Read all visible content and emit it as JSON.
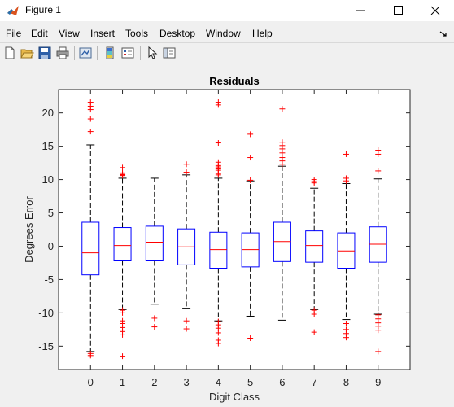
{
  "window": {
    "title": "Figure 1"
  },
  "menu": [
    "File",
    "Edit",
    "View",
    "Insert",
    "Tools",
    "Desktop",
    "Window",
    "Help"
  ],
  "toolbar": [
    "new-figure",
    "open-file",
    "save",
    "print",
    "link-plot",
    "insert-colorbar",
    "insert-legend",
    "edit-plot",
    "open-property-inspector"
  ],
  "colors": {
    "box": "#0000ff",
    "median": "#ff0000",
    "outlier": "#ff0000",
    "whisker": "#000000"
  },
  "chart_data": {
    "type": "boxplot",
    "title": "Residuals",
    "xlabel": "Digit Class",
    "ylabel": "Degrees Error",
    "categories": [
      "0",
      "1",
      "2",
      "3",
      "4",
      "5",
      "6",
      "7",
      "8",
      "9"
    ],
    "yticks": [
      -15,
      -10,
      -5,
      0,
      5,
      10,
      15,
      20
    ],
    "ylim": [
      -18.5,
      23.5
    ],
    "grid": false,
    "boxes": [
      {
        "category": "0",
        "q1": -4.3,
        "median": -1.0,
        "q3": 3.6,
        "whisker_low": -15.8,
        "whisker_high": 15.2,
        "outliers": [
          21.6,
          21.0,
          20.5,
          19.1,
          17.2,
          -16.1,
          -16.4
        ]
      },
      {
        "category": "1",
        "q1": -2.2,
        "median": 0.1,
        "q3": 2.8,
        "whisker_low": -9.5,
        "whisker_high": 10.2,
        "outliers": [
          11.8,
          11.0,
          10.8,
          10.7,
          10.6,
          -9.6,
          -10.0,
          -11.2,
          -11.6,
          -12.2,
          -12.8,
          -13.3,
          -16.5
        ]
      },
      {
        "category": "2",
        "q1": -2.2,
        "median": 0.6,
        "q3": 3.0,
        "whisker_low": -8.7,
        "whisker_high": 10.2,
        "outliers": [
          -10.8,
          -12.1
        ]
      },
      {
        "category": "3",
        "q1": -2.8,
        "median": -0.1,
        "q3": 2.6,
        "whisker_low": -9.3,
        "whisker_high": 10.7,
        "outliers": [
          12.3,
          11.1,
          -11.2,
          -12.4
        ]
      },
      {
        "category": "4",
        "q1": -3.3,
        "median": -0.5,
        "q3": 2.1,
        "whisker_low": -11.2,
        "whisker_high": 10.2,
        "outliers": [
          21.6,
          21.2,
          15.5,
          12.6,
          12.1,
          11.9,
          11.6,
          11.4,
          10.9,
          10.7,
          -11.3,
          -11.8,
          -12.3,
          -13.0,
          -14.1,
          -14.6
        ]
      },
      {
        "category": "5",
        "q1": -3.1,
        "median": -0.5,
        "q3": 2.0,
        "whisker_low": -10.5,
        "whisker_high": 9.8,
        "outliers": [
          16.8,
          13.3,
          9.9,
          -13.8
        ]
      },
      {
        "category": "6",
        "q1": -2.3,
        "median": 0.7,
        "q3": 3.6,
        "whisker_low": -11.1,
        "whisker_high": 12.0,
        "outliers": [
          20.6,
          15.6,
          15.1,
          14.6,
          14.0,
          13.3,
          12.8,
          12.3
        ]
      },
      {
        "category": "7",
        "q1": -2.4,
        "median": 0.1,
        "q3": 2.3,
        "whisker_low": -9.5,
        "whisker_high": 8.7,
        "outliers": [
          10.0,
          9.7,
          9.5,
          -9.6,
          -10.2,
          -12.9
        ]
      },
      {
        "category": "8",
        "q1": -3.3,
        "median": -0.7,
        "q3": 2.0,
        "whisker_low": -11.0,
        "whisker_high": 9.4,
        "outliers": [
          13.8,
          10.2,
          9.8,
          -11.6,
          -12.5,
          -13.1,
          -13.7
        ]
      },
      {
        "category": "9",
        "q1": -2.4,
        "median": 0.3,
        "q3": 2.9,
        "whisker_low": -10.2,
        "whisker_high": 10.1,
        "outliers": [
          14.4,
          13.8,
          11.3,
          -10.3,
          -10.9,
          -11.5,
          -12.0,
          -12.6,
          -15.8
        ]
      }
    ]
  }
}
